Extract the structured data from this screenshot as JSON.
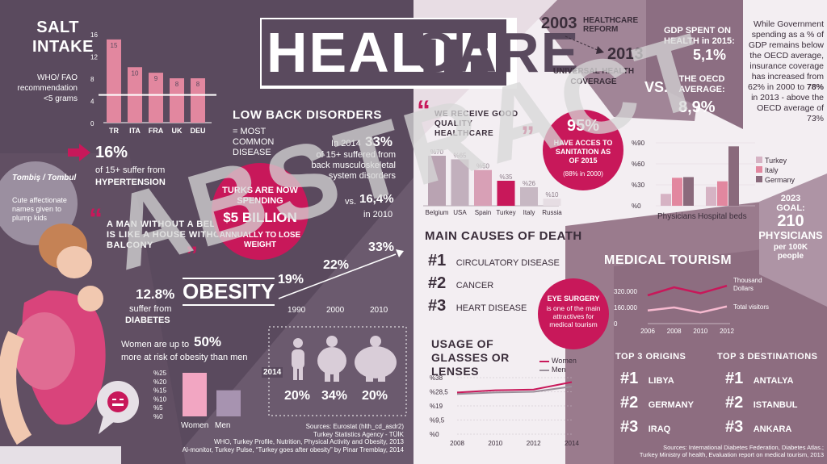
{
  "title": {
    "health": "HEALTH",
    "care": "CARE"
  },
  "watermark": "ABSTRACT",
  "salt": {
    "title": "SALT INTAKE",
    "rec": "WHO/ FAO recommendation <5 grams",
    "chart": {
      "categories": [
        "TR",
        "ITA",
        "FRA",
        "UK",
        "DEU"
      ],
      "values": [
        15,
        10,
        9,
        8,
        8
      ],
      "labels": [
        "15",
        "10",
        "9",
        "8",
        "8"
      ],
      "yticks": [
        "16",
        "12",
        "8",
        "4",
        "0"
      ]
    }
  },
  "hypertension": {
    "pct": "16%",
    "line1": "of 15+ suffer from",
    "line2": "HYPERTENSION"
  },
  "tombis": {
    "title": "Tombiş / Tombul",
    "desc": "Cute affectionate names given to plump kids"
  },
  "quote_belly": "A MAN WITHOUT A BELLY IS LIKE A HOUSE WITHOUT BALCONY",
  "spending": {
    "l1": "TURKS ARE NOW SPENDING",
    "l2": "$5 BILLION",
    "l3": "ANNUALLY TO LOSE WEIGHT"
  },
  "back": {
    "title": "LOW BACK DISORDERS",
    "sub": "= MOST COMMON DISEASE",
    "p1": "In 2014",
    "pct1": "33%",
    "d1": "of 15+ suffered from back musculoskeletal system disorders",
    "vs": "vs.",
    "pct2": "16,4%",
    "p2": "in 2010"
  },
  "obesity_trend": {
    "values": [
      "19%",
      "22%",
      "33%"
    ],
    "years": [
      "1990",
      "2000",
      "2010"
    ]
  },
  "obesity": {
    "title": "OBESITY",
    "diab_pct": "12.8%",
    "diab_l1": "suffer from",
    "diab_l2": "DIABETES",
    "risk": "Women are up to",
    "risk_pct": "50%",
    "risk2": "more at risk of obesity than men"
  },
  "gender_chart": {
    "categories": [
      "Women",
      "Men"
    ],
    "values": [
      25,
      15
    ],
    "yticks": [
      "%25",
      "%20",
      "%15",
      "%10",
      "%5",
      "%0"
    ]
  },
  "y2014": {
    "year": "2014",
    "values": [
      "20%",
      "34%",
      "20%"
    ]
  },
  "sources_left": [
    "Sources: Eurostat (hlth_cd_asdr2)",
    "Turkey Statistics Agency - TÜİK",
    "WHO, Turkey Profile, Nutrition, Physical Activity and Obesity, 2013",
    "Al-monitor, Turkey Pulse, “Turkey goes after obesity” by Pinar Tremblay, 2014"
  ],
  "reform": {
    "y1": "2003",
    "t1": "HEALTHCARE REFORM",
    "y2": "2013",
    "t2": "UNIVERSAL HEALTH COVERAGE"
  },
  "gdp": {
    "t1": "GDP SPENT ON HEALTH in 2015:",
    "v1": "5,1%",
    "vs": "VS.",
    "t2": "THE OECD AVERAGE:",
    "v2": "8,9%"
  },
  "gov": {
    "text": "While Government spending as a % of GDP remains below the OECD average, insurance coverage has increased from 62% in 2000 to",
    "pct": "78%",
    "text2": "in 2013 - above the OECD average of 73%"
  },
  "quality": {
    "title": "WE RECEIVE GOOD QUALITY HEALTHCARE",
    "categories": [
      "Belgium",
      "USA",
      "Spain",
      "Turkey",
      "Italy",
      "Russia"
    ],
    "values": [
      70,
      65,
      50,
      35,
      26,
      10
    ],
    "labels": [
      "%70",
      "%65",
      "%50",
      "%35",
      "%26",
      "%10"
    ]
  },
  "sanitation": {
    "pct": "95%",
    "l1": "HAVE ACCES TO SANITATION AS OF 2015",
    "l2": "(88% in 2000)"
  },
  "resources": {
    "yticks": [
      "%90",
      "%60",
      "%30",
      "%0"
    ],
    "categories": [
      "Physicians",
      "Hospital beds"
    ],
    "series": [
      {
        "name": "Turkey",
        "values": [
          17,
          27
        ]
      },
      {
        "name": "Italy",
        "values": [
          40,
          35
        ]
      },
      {
        "name": "Germany",
        "values": [
          41,
          85
        ]
      }
    ],
    "colors": [
      "#d6b3c4",
      "#e2879f",
      "#8a6a7c"
    ]
  },
  "goal": {
    "l1": "2023",
    "l2": "GOAL:",
    "l3": "210",
    "l4": "PHYSICIANS",
    "l5": "per 100K people"
  },
  "death": {
    "title": "MAIN CAUSES OF DEATH",
    "items": [
      {
        "n": "#1",
        "t": "CIRCULATORY DISEASE"
      },
      {
        "n": "#2",
        "t": "CANCER"
      },
      {
        "n": "#3",
        "t": "HEART DISEASE"
      }
    ]
  },
  "eye": {
    "l1": "EYE SURGERY",
    "l2": "is one of the main attractives for medical tourism"
  },
  "glasses": {
    "title": "USAGE OF GLASSES OR LENSES",
    "legend": [
      "Women",
      "Men"
    ],
    "yticks": [
      "%38",
      "%28,5",
      "%19",
      "%9,5",
      "%0"
    ],
    "years": [
      "2008",
      "2010",
      "2012",
      "2014"
    ],
    "women": [
      28,
      29.5,
      30,
      35
    ],
    "men": [
      27,
      28,
      28.5,
      32
    ]
  },
  "tourism": {
    "title": "MEDICAL TOURISM",
    "yticks": [
      "320.000",
      "160.000",
      "0"
    ],
    "years": [
      "2006",
      "2008",
      "2010",
      "2012"
    ],
    "dollars": [
      280000,
      360000,
      300000,
      375000
    ],
    "visitors": [
      130000,
      160000,
      110000,
      170000
    ],
    "leg1": "Thousand Dollars",
    "leg2": "Total visitors"
  },
  "origins": {
    "title": "TOP 3 ORIGINS",
    "items": [
      {
        "n": "#1",
        "t": "LIBYA"
      },
      {
        "n": "#2",
        "t": "GERMANY"
      },
      {
        "n": "#3",
        "t": "IRAQ"
      }
    ]
  },
  "destinations": {
    "title": "TOP 3 DESTINATIONS",
    "items": [
      {
        "n": "#1",
        "t": "ANTALYA"
      },
      {
        "n": "#2",
        "t": "ISTANBUL"
      },
      {
        "n": "#3",
        "t": "ANKARA"
      }
    ]
  },
  "sources_right": [
    "Sources: International Diabetes Federation, Diabetes Atlas.;",
    "Turkey Ministry of health, Evaluation report on medical tourism, 2013"
  ]
}
